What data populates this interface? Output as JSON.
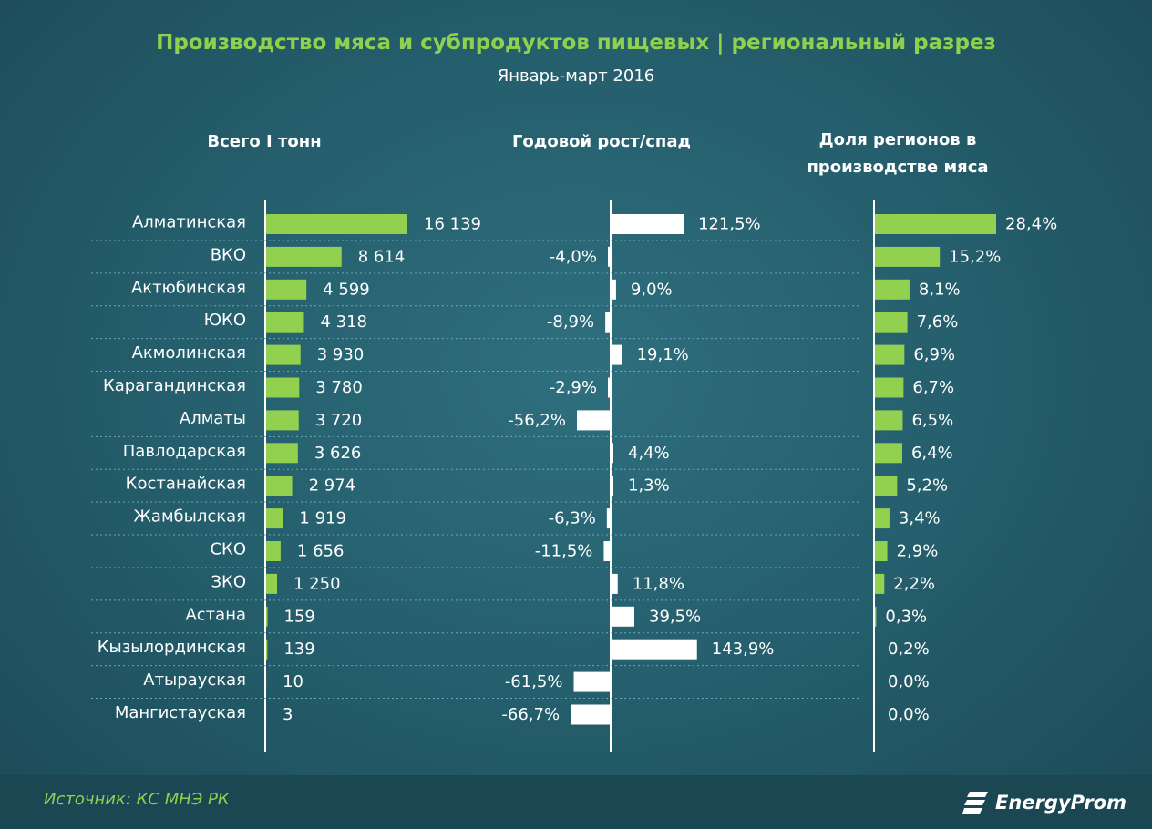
{
  "chart_data": {
    "type": "bar",
    "title": "Производство мяса и субпродуктов пищевых | региональный разрез",
    "subtitle": "Январь-март 2016",
    "categories": [
      "Алматинская",
      "ВКО",
      "Актюбинская",
      "ЮКО",
      "Акмолинская",
      "Карагандинская",
      "Алматы",
      "Павлодарская",
      "Костанайская",
      "Жамбылская",
      "СКО",
      "ЗКО",
      "Астана",
      "Кызылординская",
      "Атырауская",
      "Мангистауская"
    ],
    "series": [
      {
        "name": "Всего І тонн",
        "values": [
          16139,
          8614,
          4599,
          4318,
          3930,
          3780,
          3720,
          3626,
          2974,
          1919,
          1656,
          1250,
          159,
          139,
          10,
          3
        ],
        "labels": [
          "16 139",
          "8 614",
          "4 599",
          "4 318",
          "3 930",
          "3 780",
          "3 720",
          "3 626",
          "2 974",
          "1 919",
          "1 656",
          "1 250",
          "159",
          "139",
          "10",
          "3"
        ],
        "color": "#92d050"
      },
      {
        "name": "Годовой рост/спад",
        "values": [
          121.5,
          -4.0,
          9.0,
          -8.9,
          19.1,
          -2.9,
          -56.2,
          4.4,
          1.3,
          -6.3,
          -11.5,
          11.8,
          39.5,
          143.9,
          -61.5,
          -66.7
        ],
        "labels": [
          "121,5%",
          "-4,0%",
          "9,0%",
          "-8,9%",
          "19,1%",
          "-2,9%",
          "-56,2%",
          "4,4%",
          "1,3%",
          "-6,3%",
          "-11,5%",
          "11,8%",
          "39,5%",
          "143,9%",
          "-61,5%",
          "-66,7%"
        ],
        "color": "#ffffff"
      },
      {
        "name": "Доля регионов в производстве мяса",
        "values": [
          28.4,
          15.2,
          8.1,
          7.6,
          6.9,
          6.7,
          6.5,
          6.4,
          5.2,
          3.4,
          2.9,
          2.2,
          0.3,
          0.2,
          0.0,
          0.0
        ],
        "labels": [
          "28,4%",
          "15,2%",
          "8,1%",
          "7,6%",
          "6,9%",
          "6,7%",
          "6,5%",
          "6,4%",
          "5,2%",
          "3,4%",
          "2,9%",
          "2,2%",
          "0,3%",
          "0,2%",
          "0,0%",
          "0,0%"
        ],
        "color": "#92d050"
      }
    ],
    "column_headers": {
      "total": "Всего І тонн",
      "growth": "Годовой рост/спад",
      "share_line1": "Доля регионов в",
      "share_line2": "производстве мяса"
    }
  },
  "footer": {
    "source": "Источник: КС МНЭ РК",
    "logo_text": "EnergyProm"
  }
}
